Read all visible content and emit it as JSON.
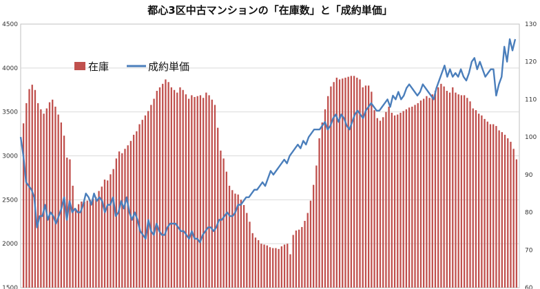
{
  "chart_data": {
    "type": "bar",
    "title": "都心3区中古マンションの「在庫数」と「成約単価」",
    "legend_position": "top-left",
    "grid": true,
    "y_left": {
      "ylim": [
        1500,
        4500
      ],
      "ticks": [
        "1500",
        "2000",
        "2500",
        "3000",
        "3500",
        "4000",
        "4500"
      ]
    },
    "y_right": {
      "ylim": [
        60,
        130
      ],
      "ticks": [
        "60",
        "70",
        "80",
        "90",
        "100",
        "110",
        "120",
        "130"
      ]
    },
    "series": [
      {
        "name": "在庫",
        "type": "bar",
        "axis": "left",
        "color": "#C0504D",
        "values": [
          3370,
          3600,
          3760,
          3810,
          3750,
          3600,
          3530,
          3480,
          3540,
          3610,
          3640,
          3560,
          3470,
          3380,
          3230,
          2980,
          2960,
          2660,
          2400,
          2450,
          2480,
          2480,
          2490,
          2500,
          2510,
          2530,
          2600,
          2650,
          2730,
          2720,
          2790,
          2850,
          2970,
          3050,
          3030,
          3080,
          3120,
          3170,
          3240,
          3280,
          3360,
          3410,
          3460,
          3510,
          3580,
          3650,
          3740,
          3780,
          3820,
          3870,
          3840,
          3780,
          3750,
          3720,
          3780,
          3750,
          3700,
          3650,
          3690,
          3670,
          3680,
          3690,
          3660,
          3720,
          3690,
          3640,
          3580,
          3320,
          3060,
          2970,
          2820,
          2660,
          2610,
          2570,
          2560,
          2500,
          2440,
          2350,
          2250,
          2120,
          2070,
          2040,
          2000,
          1990,
          1980,
          1960,
          1950,
          1950,
          1940,
          1970,
          1990,
          2000,
          1880,
          2100,
          2150,
          2160,
          2190,
          2260,
          2350,
          2490,
          2670,
          2890,
          3200,
          3380,
          3530,
          3680,
          3790,
          3840,
          3890,
          3870,
          3880,
          3890,
          3900,
          3910,
          3910,
          3890,
          3870,
          3780,
          3800,
          3800,
          3730,
          3520,
          3430,
          3400,
          3440,
          3500,
          3560,
          3490,
          3460,
          3470,
          3490,
          3510,
          3530,
          3550,
          3560,
          3580,
          3600,
          3630,
          3650,
          3680,
          3660,
          3700,
          3740,
          3780,
          3820,
          3790,
          3740,
          3720,
          3780,
          3720,
          3700,
          3690,
          3690,
          3660,
          3620,
          3540,
          3520,
          3480,
          3460,
          3420,
          3390,
          3360,
          3360,
          3340,
          3290,
          3270,
          3240,
          3200,
          3160,
          3080,
          2960
        ]
      },
      {
        "name": "成約単価",
        "type": "line",
        "axis": "right",
        "color": "#4A7EBB",
        "values": [
          100,
          95,
          88,
          87,
          86,
          84,
          76,
          79,
          79,
          82,
          78,
          80,
          79,
          77,
          79,
          81,
          84,
          78,
          83,
          80,
          81,
          80,
          80,
          82,
          85,
          84,
          82,
          85,
          83,
          84,
          83,
          80,
          82,
          82,
          84,
          79,
          80,
          83,
          81,
          84,
          80,
          78,
          80,
          78,
          75,
          74,
          73,
          78,
          75,
          74,
          77,
          75,
          74,
          74,
          76,
          77,
          77,
          77,
          76,
          75,
          75,
          74,
          73,
          75,
          73,
          73,
          72,
          74,
          75,
          76,
          76,
          75,
          76,
          78,
          78,
          79,
          80,
          79,
          79,
          80,
          82,
          82,
          83,
          84,
          84,
          85,
          86,
          86,
          87,
          88,
          87,
          89,
          91,
          90,
          91,
          92,
          93,
          94,
          93,
          95,
          96,
          97,
          98,
          97,
          99,
          98,
          100,
          101,
          102,
          102,
          102,
          103,
          104,
          102,
          103,
          105,
          106,
          104,
          106,
          105,
          103,
          102,
          104,
          106,
          107,
          106,
          105,
          107,
          108,
          109,
          108,
          107,
          107,
          108,
          109,
          110,
          108,
          111,
          110,
          112,
          110,
          111,
          113,
          114,
          113,
          112,
          111,
          112,
          114,
          113,
          112,
          111,
          110,
          113,
          115,
          117,
          119,
          116,
          118,
          116,
          117,
          116,
          118,
          116,
          115,
          117,
          120,
          121,
          118,
          120,
          118,
          116,
          117,
          118,
          118,
          111,
          114,
          116,
          124,
          120,
          126,
          123,
          126
        ]
      }
    ]
  }
}
